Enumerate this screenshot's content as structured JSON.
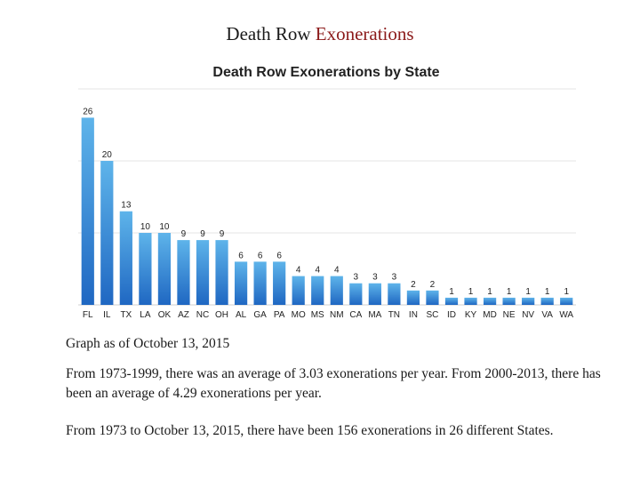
{
  "slide": {
    "title_plain": "Death Row ",
    "title_accent": "Exonerations",
    "accent_color": "#8b1a1a"
  },
  "notes": {
    "as_of": "Graph as of October 13, 2015",
    "averages": "From 1973-1999, there was an average of 3.03 exonerations per year. From 2000-2013, there has been an average of 4.29 exonerations per year.",
    "total": "From 1973 to October 13, 2015, there have been 156 exonerations in 26 different States."
  },
  "chart_data": {
    "type": "bar",
    "title": "Death Row Exonerations by State",
    "categories": [
      "FL",
      "IL",
      "TX",
      "LA",
      "OK",
      "AZ",
      "NC",
      "OH",
      "AL",
      "GA",
      "PA",
      "MO",
      "MS",
      "NM",
      "CA",
      "MA",
      "TN",
      "IN",
      "SC",
      "ID",
      "KY",
      "MD",
      "NE",
      "NV",
      "VA",
      "WA"
    ],
    "values": [
      26,
      20,
      13,
      10,
      10,
      9,
      9,
      9,
      6,
      6,
      6,
      4,
      4,
      4,
      3,
      3,
      3,
      2,
      2,
      1,
      1,
      1,
      1,
      1,
      1,
      1
    ],
    "ylim": [
      0,
      30
    ],
    "grid": true,
    "bar_color_top": "#5eb4ea",
    "bar_color_bottom": "#1f67c2"
  }
}
